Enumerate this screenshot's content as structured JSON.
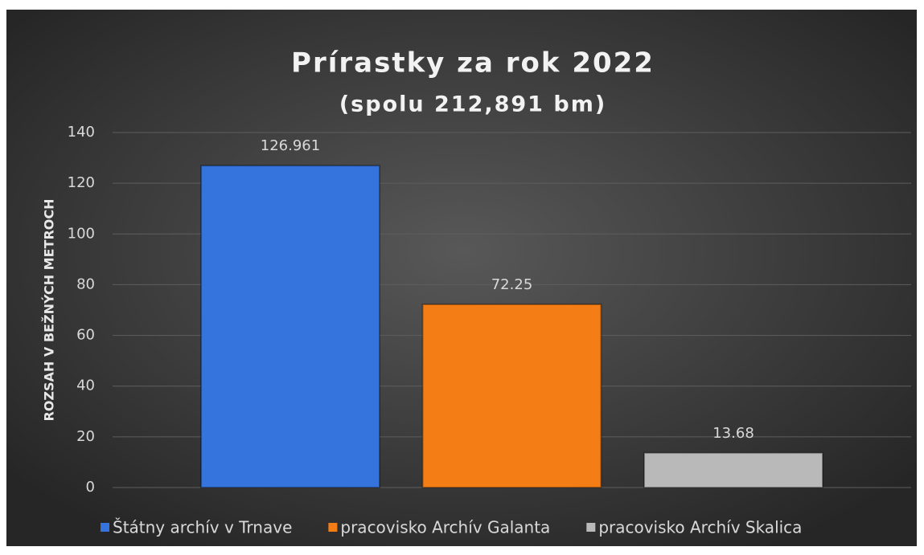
{
  "chart_data": {
    "type": "bar",
    "title": "Prírastky za rok 2022",
    "subtitle": "(spolu 212,891 bm)",
    "y_label": "ROZSAH V BEŽNÝCH METROCH",
    "series": [
      {
        "name": "Štátny archív v Trnave",
        "color": "#3573dd",
        "values": [
          126.961
        ]
      },
      {
        "name": "pracovisko Archív Galanta",
        "color": "#f47d16",
        "values": [
          72.25
        ]
      },
      {
        "name": "pracovisko Archív Skalica",
        "color": "#b9b9b9",
        "values": [
          13.68
        ]
      }
    ],
    "ylim": [
      0,
      140
    ],
    "yticks": [
      0,
      20,
      40,
      60,
      80,
      100,
      120,
      140
    ],
    "grid": true,
    "legend": "bottom"
  }
}
